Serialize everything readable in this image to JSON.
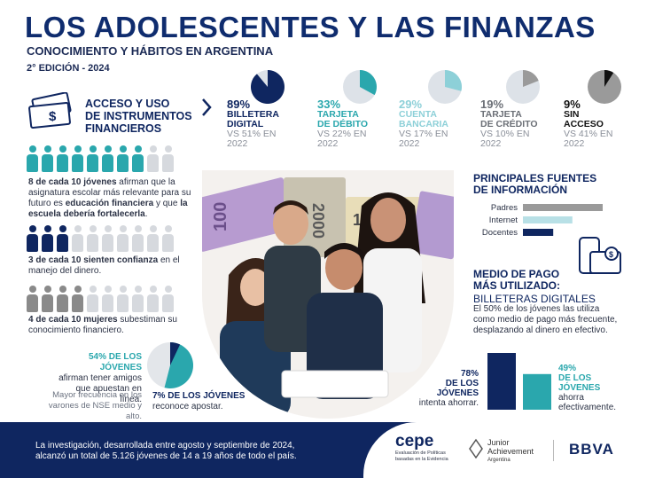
{
  "title": "LOS ADOLESCENTES Y LAS FINANZAS",
  "subtitle": "CONOCIMIENTO Y HÁBITOS EN ARGENTINA",
  "edition": "2° EDICIÓN - 2024",
  "access": {
    "title_line1": "ACCESO Y USO",
    "title_line2": "DE INSTRUMENTOS",
    "title_line3": "FINANCIEROS"
  },
  "chart_data": [
    {
      "type": "pie",
      "title": "",
      "slices": [
        {
          "label": "BILLETERA DIGITAL",
          "value": 89,
          "pct_text": "89%",
          "label_line1": "BILLETERA",
          "label_line2": "DIGITAL",
          "vs_line1": "VS 51% EN",
          "vs_line2": "2022",
          "previous": 51,
          "color": "#0f2660"
        },
        {
          "label": "TARJETA DE DÉBITO",
          "value": 33,
          "pct_text": "33%",
          "label_line1": "TARJETA",
          "label_line2": "DE DÉBITO",
          "vs_line1": "VS 22% EN",
          "vs_line2": "2022",
          "previous": 22,
          "color": "#2aa7ad"
        },
        {
          "label": "CUENTA BANCARIA",
          "value": 29,
          "pct_text": "29%",
          "label_line1": "CUENTA",
          "label_line2": "BANCARIA",
          "vs_line1": "VS 17% EN",
          "vs_line2": "2022",
          "previous": 17,
          "color": "#8dd0d8"
        },
        {
          "label": "TARJETA DE CRÉDITO",
          "value": 19,
          "pct_text": "19%",
          "label_line1": "TARJETA",
          "label_line2": "DE CRÉDITO",
          "vs_line1": "VS 10% EN",
          "vs_line2": "2022",
          "previous": 10,
          "color": "#9a9a9a"
        },
        {
          "label": "SIN ACCESO",
          "value": 9,
          "pct_text": "9%",
          "label_line1": "SIN",
          "label_line2": "ACCESO",
          "vs_line1": "VS 41% EN",
          "vs_line2": "2022",
          "previous": 41,
          "color": "#111111"
        }
      ]
    },
    {
      "type": "bar",
      "title": "PRINCIPALES FUENTES DE INFORMACIÓN",
      "categories": [
        "Padres",
        "Internet",
        "Docentes"
      ],
      "values": [
        100,
        62,
        38
      ],
      "colors": [
        "#9a9a9a",
        "#b8e0e6",
        "#0f2660"
      ]
    },
    {
      "type": "bar",
      "title": "",
      "categories": [
        "intenta ahorrar",
        "ahorra efectivamente"
      ],
      "values": [
        78,
        49
      ],
      "colors": [
        "#0f2660",
        "#2aa7ad"
      ]
    },
    {
      "type": "pie",
      "title": "",
      "slices": [
        {
          "label": "tienen amigos que apuestan en línea",
          "value": 54,
          "color": "#2aa7ad"
        },
        {
          "label": "reconoce apostar",
          "value": 7,
          "color": "#0f2660"
        },
        {
          "label": "resto",
          "value": 39,
          "color": "#e3e6ea"
        }
      ]
    }
  ],
  "people": {
    "row1": {
      "filled": 8,
      "total": 10,
      "color": "#2aa7ad",
      "text_parts": [
        "8 de cada 10 jóvenes",
        " afirman que la asignatura escolar más relevante para su futuro es ",
        "educación financiera",
        " y que ",
        "la escuela debería fortalecerla",
        "."
      ]
    },
    "row2": {
      "filled": 3,
      "total": 10,
      "color": "#0f2660",
      "text_parts": [
        "3 de cada 10 sienten confianza",
        " en el manejo del dinero."
      ]
    },
    "row3": {
      "filled": 4,
      "total": 10,
      "color": "#8a8a8a",
      "text_parts": [
        "4 de cada 10 mujeres",
        " subestiman su conocimiento financiero."
      ]
    }
  },
  "bets": {
    "pct1": "54% DE LOS JÓVENES",
    "text1": "afirman tener amigos que apuestan en línea.",
    "note": "Mayor frecuencia en los varones de NSE medio y alto.",
    "pct2": "7% DE LOS JÓVENES",
    "text2": "reconoce apostar."
  },
  "sources": {
    "title_line1": "PRINCIPALES FUENTES",
    "title_line2": "DE INFORMACIÓN"
  },
  "medio": {
    "title_line1": "MEDIO DE PAGO",
    "title_line2": "MÁS UTILIZADO:",
    "subtitle": "BILLETERAS DIGITALES",
    "text_line1": "El 50% de los jóvenes las utiliza",
    "text_line2": "como medio de pago más frecuente,",
    "text_line3": "desplazando al dinero en efectivo."
  },
  "savings": {
    "a_pct": "78%",
    "a_l1": "DE LOS",
    "a_l2": "JÓVENES",
    "a_text": "intenta ahorrar.",
    "b_pct": "49%",
    "b_l1": "DE LOS",
    "b_l2": "JÓVENES",
    "b_text1": "ahorra",
    "b_text2": "efectivamente."
  },
  "photo": {
    "note_2000": "2000",
    "note_1000": "1000",
    "note_100": "100"
  },
  "footer": {
    "line1": "La investigación, desarrollada entre agosto y septiembre de 2024,",
    "line2": "alcanzó un total de 5.126 jóvenes de 14 a 19 años de todo el país.",
    "cepe": "cepe",
    "cepe_sub1": "Evaluación de Políticas",
    "cepe_sub2": "basadas en la Evidencia",
    "ja1": "Junior",
    "ja2": "Achievement",
    "ja3": "Argentina",
    "bbva": "BBVA"
  }
}
